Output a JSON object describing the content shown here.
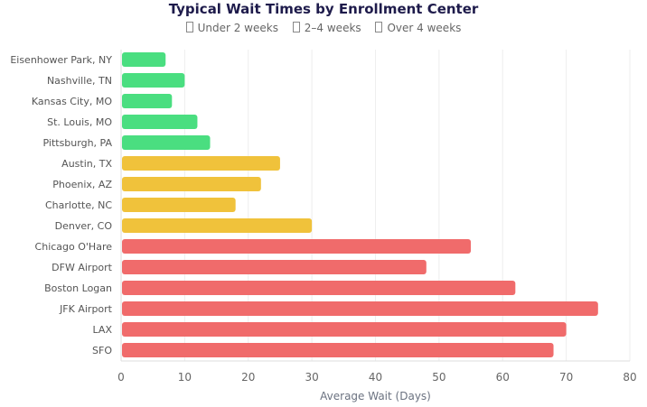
{
  "chart_data": {
    "type": "bar",
    "orientation": "horizontal",
    "title": "Typical Wait Times by Enrollment Center",
    "xlabel": "Average Wait (Days)",
    "ylabel": "",
    "xlim": [
      0,
      80
    ],
    "xticks": [
      0,
      10,
      20,
      30,
      40,
      50,
      60,
      70,
      80
    ],
    "grid": true,
    "legend_position": "top",
    "legend": [
      {
        "label": "Under 2 weeks",
        "color": "#4ade80"
      },
      {
        "label": "2–4 weeks",
        "color": "#f0c23b"
      },
      {
        "label": "Over 4 weeks",
        "color": "#f06b6b"
      }
    ],
    "categories": [
      "Eisenhower Park, NY",
      "Nashville, TN",
      "Kansas City, MO",
      "St. Louis, MO",
      "Pittsburgh, PA",
      "Austin, TX",
      "Phoenix, AZ",
      "Charlotte, NC",
      "Denver, CO",
      "Chicago O'Hare",
      "DFW Airport",
      "Boston Logan",
      "JFK Airport",
      "LAX",
      "SFO"
    ],
    "values": [
      7,
      10,
      8,
      12,
      14,
      25,
      22,
      18,
      30,
      55,
      48,
      62,
      75,
      70,
      68
    ],
    "groups": [
      0,
      0,
      0,
      0,
      0,
      1,
      1,
      1,
      1,
      2,
      2,
      2,
      2,
      2,
      2
    ]
  }
}
